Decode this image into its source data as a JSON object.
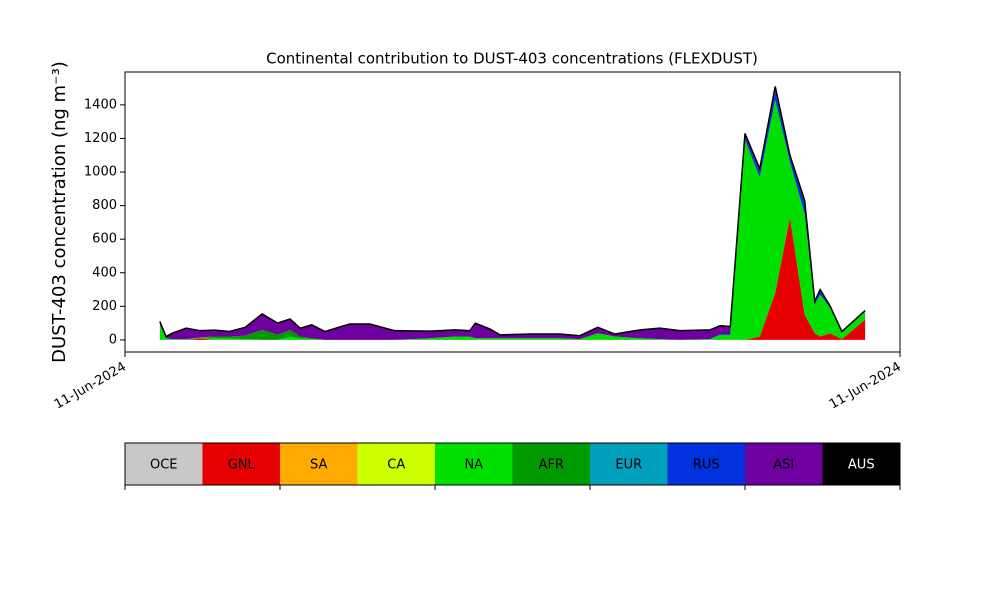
{
  "chart_data": {
    "type": "stacked_area",
    "title": "Continental contribution to DUST-403 concentrations (FLEXDUST)",
    "y_label": "DUST-403 concentration (ng m⁻³)",
    "x": [
      4.5,
      5.3,
      6.1,
      7.9,
      9.7,
      11.6,
      13.5,
      15.5,
      17.7,
      19.7,
      21.3,
      22.6,
      24.1,
      25.8,
      29,
      31.6,
      34.8,
      39.4,
      42.6,
      44.5,
      45.2,
      47.1,
      48.4,
      52.3,
      56.1,
      58.7,
      61,
      63.2,
      66.5,
      69,
      71.6,
      75.5,
      76.8,
      78.1,
      80,
      81.9,
      83.9,
      85.8,
      87.7,
      89,
      89.7,
      91,
      92.5,
      95.5
    ],
    "xlim": [
      0,
      100
    ],
    "xticks": [
      {
        "value": 0,
        "label": "11-Jun-2024"
      },
      {
        "value": 100,
        "label": "11-Jun-2024"
      }
    ],
    "ylim": [
      -72,
      1596
    ],
    "yticks": [
      0,
      200,
      400,
      600,
      800,
      1000,
      1200,
      1400
    ],
    "series": [
      {
        "name": "OCE",
        "color": "#c8c8c8",
        "values": [
          0,
          0,
          0,
          0,
          0,
          0,
          0,
          0,
          0,
          0,
          0,
          0,
          0,
          0,
          0,
          0,
          0,
          0,
          0,
          0,
          0,
          0,
          0,
          0,
          0,
          0,
          0,
          0,
          0,
          0,
          0,
          0,
          0,
          0,
          0,
          0,
          0,
          0,
          0,
          0,
          0,
          0,
          0,
          0
        ]
      },
      {
        "name": "GNL",
        "color": "#e60000",
        "values": [
          0,
          0,
          0,
          0,
          10,
          0,
          0,
          0,
          0,
          0,
          0,
          0,
          0,
          0,
          0,
          0,
          0,
          0,
          0,
          0,
          0,
          0,
          0,
          0,
          0,
          0,
          0,
          0,
          0,
          0,
          0,
          0,
          0,
          0,
          0,
          20,
          280,
          730,
          150,
          40,
          20,
          40,
          5,
          120
        ]
      },
      {
        "name": "SA",
        "color": "#ffaa00",
        "values": [
          0,
          0,
          0,
          0,
          0,
          0,
          0,
          0,
          0,
          0,
          0,
          0,
          0,
          0,
          0,
          0,
          0,
          0,
          0,
          0,
          0,
          0,
          0,
          0,
          0,
          0,
          0,
          0,
          0,
          0,
          0,
          0,
          0,
          0,
          0,
          0,
          0,
          0,
          0,
          0,
          0,
          0,
          0,
          0
        ]
      },
      {
        "name": "CA",
        "color": "#ccff00",
        "values": [
          0,
          0,
          0,
          0,
          0,
          0,
          0,
          0,
          0,
          0,
          0,
          0,
          0,
          0,
          0,
          0,
          0,
          0,
          0,
          0,
          0,
          0,
          0,
          0,
          0,
          0,
          0,
          0,
          0,
          0,
          0,
          0,
          0,
          0,
          0,
          0,
          0,
          0,
          0,
          0,
          0,
          0,
          0,
          0
        ]
      },
      {
        "name": "NA",
        "color": "#00e000",
        "values": [
          90,
          10,
          5,
          5,
          5,
          10,
          10,
          5,
          0,
          0,
          20,
          10,
          5,
          0,
          0,
          0,
          0,
          10,
          20,
          20,
          10,
          10,
          10,
          10,
          10,
          5,
          40,
          20,
          10,
          5,
          0,
          5,
          30,
          30,
          1190,
          950,
          1150,
          330,
          600,
          170,
          250,
          150,
          40,
          50
        ]
      },
      {
        "name": "AFR",
        "color": "#009900",
        "values": [
          0,
          0,
          0,
          0,
          0,
          10,
          10,
          20,
          60,
          30,
          40,
          10,
          5,
          0,
          0,
          0,
          0,
          0,
          0,
          0,
          0,
          0,
          0,
          0,
          0,
          0,
          0,
          0,
          0,
          0,
          0,
          0,
          0,
          0,
          0,
          0,
          0,
          0,
          0,
          0,
          0,
          0,
          0,
          0
        ]
      },
      {
        "name": "EUR",
        "color": "#00a0be",
        "values": [
          0,
          0,
          0,
          0,
          0,
          0,
          0,
          0,
          0,
          0,
          0,
          0,
          0,
          0,
          0,
          0,
          0,
          0,
          0,
          0,
          0,
          0,
          0,
          0,
          0,
          0,
          0,
          0,
          0,
          0,
          0,
          0,
          0,
          0,
          0,
          0,
          0,
          0,
          0,
          0,
          0,
          0,
          0,
          0
        ]
      },
      {
        "name": "RUS",
        "color": "#0033dd",
        "values": [
          0,
          0,
          0,
          0,
          0,
          0,
          0,
          0,
          0,
          0,
          0,
          0,
          0,
          0,
          0,
          0,
          0,
          0,
          0,
          0,
          0,
          0,
          0,
          0,
          0,
          0,
          0,
          0,
          0,
          0,
          0,
          0,
          5,
          5,
          20,
          30,
          50,
          30,
          60,
          20,
          30,
          10,
          5,
          5
        ]
      },
      {
        "name": "ASI",
        "color": "#6e00a0",
        "values": [
          20,
          10,
          35,
          65,
          40,
          38,
          30,
          50,
          95,
          70,
          65,
          50,
          80,
          50,
          95,
          95,
          55,
          42,
          40,
          35,
          90,
          55,
          20,
          25,
          25,
          20,
          35,
          15,
          50,
          65,
          55,
          55,
          50,
          45,
          20,
          20,
          30,
          10,
          20,
          0,
          0,
          0,
          0,
          0
        ]
      },
      {
        "name": "AUS",
        "color": "#000000",
        "values": [
          0,
          0,
          0,
          0,
          0,
          0,
          0,
          0,
          0,
          0,
          0,
          0,
          0,
          0,
          0,
          0,
          0,
          0,
          0,
          0,
          0,
          0,
          0,
          0,
          0,
          0,
          0,
          0,
          0,
          0,
          0,
          0,
          0,
          0,
          0,
          0,
          0,
          0,
          0,
          0,
          0,
          0,
          0,
          0
        ]
      }
    ]
  }
}
